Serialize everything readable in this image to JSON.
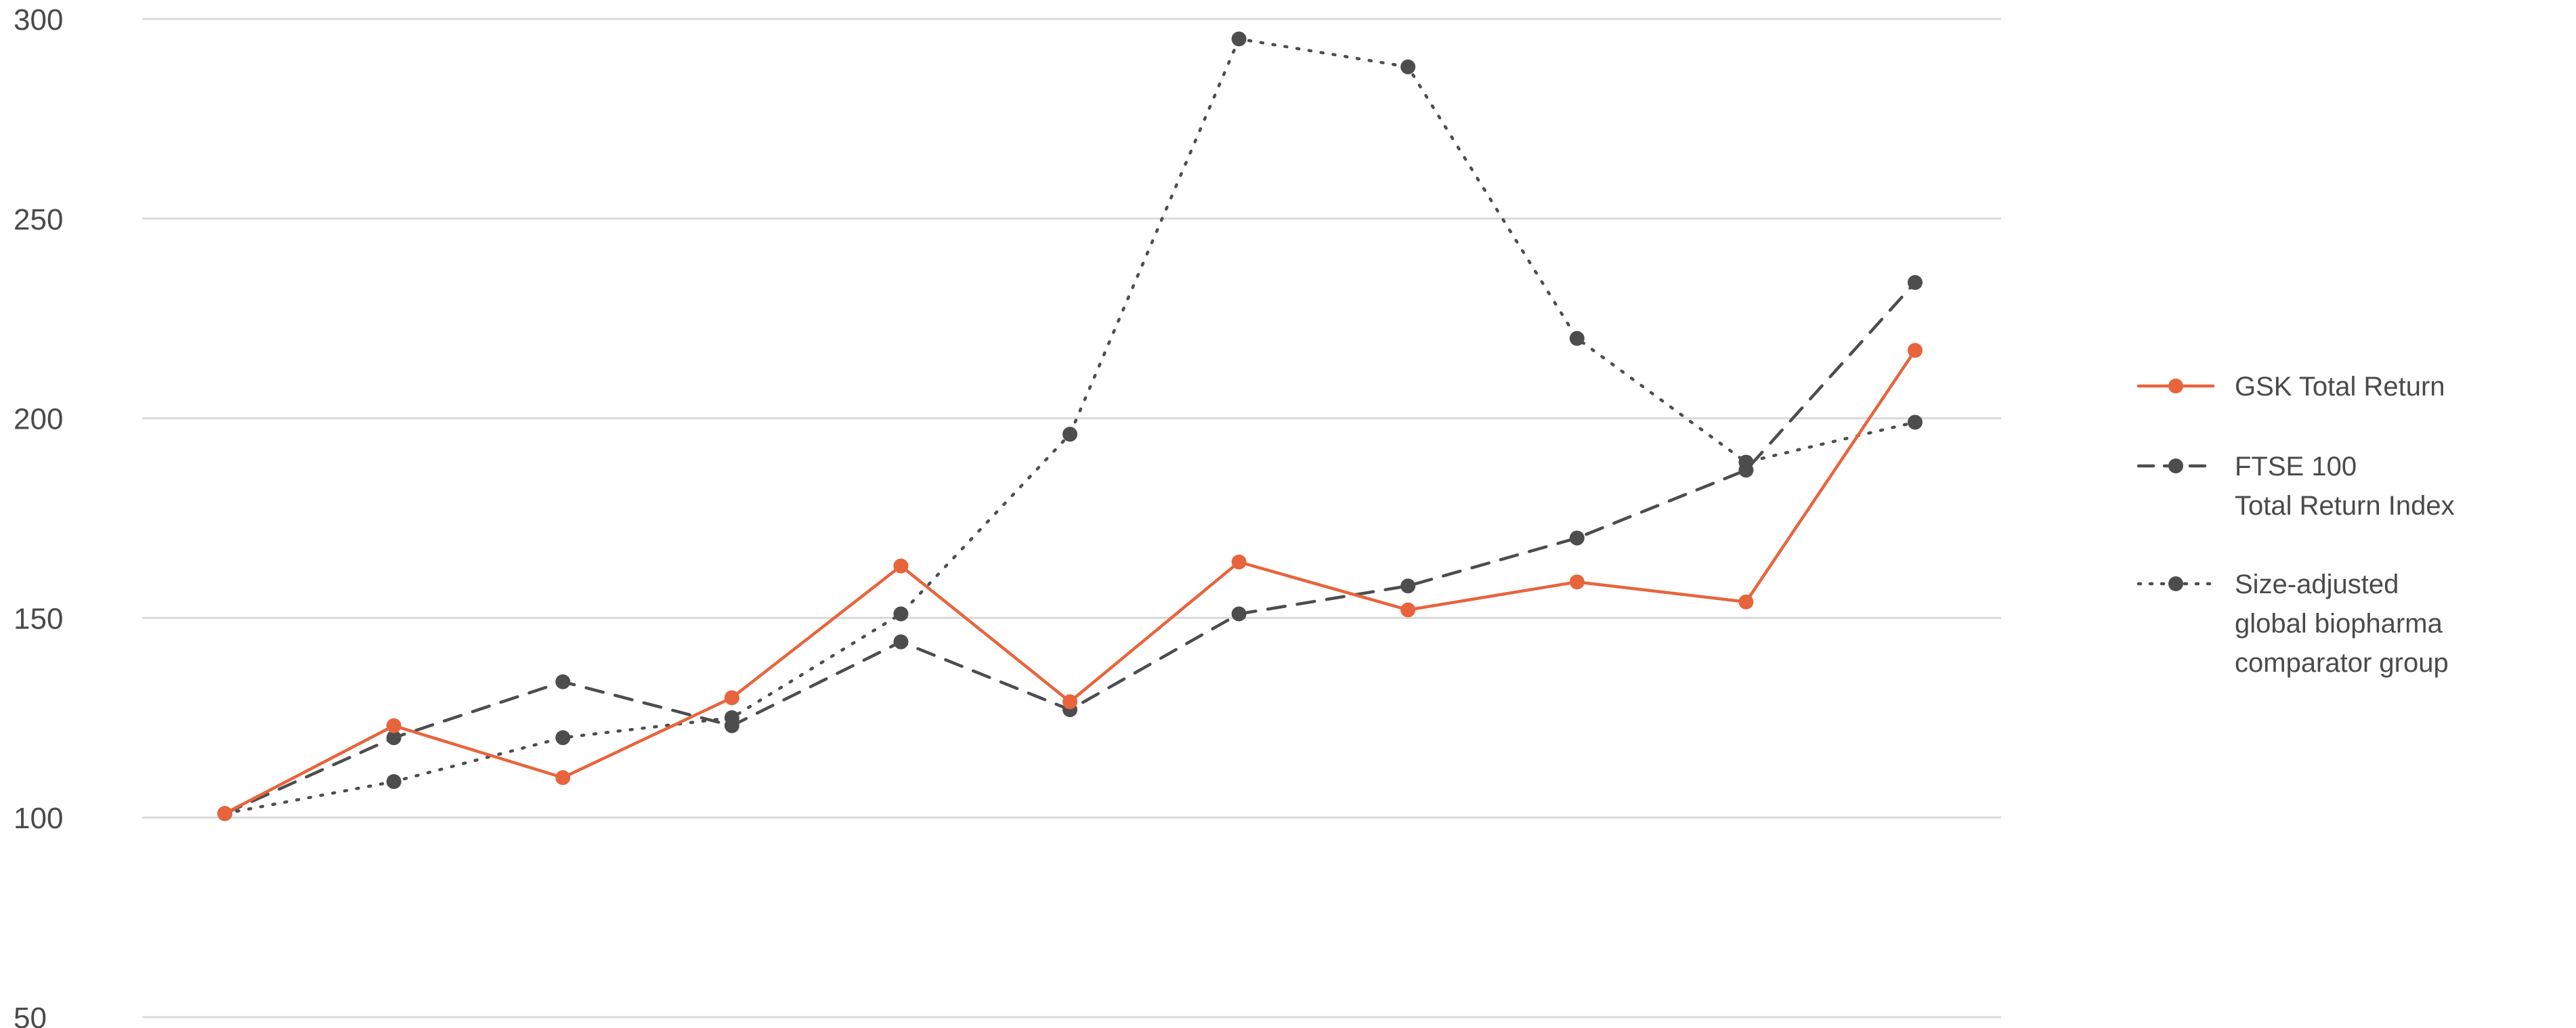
{
  "chart_data": {
    "type": "line",
    "title": "",
    "xlabel": "",
    "ylabel": "",
    "ylim": [
      50,
      300
    ],
    "yticks": [
      "50",
      "100",
      "150",
      "200",
      "250",
      "300"
    ],
    "grid": true,
    "legend_position": "right",
    "x": [
      1,
      2,
      3,
      4,
      5,
      6,
      7,
      8,
      9,
      10,
      11
    ],
    "series": [
      {
        "name": "GSK Total Return",
        "color": "#e8643c",
        "style": "solid",
        "values": [
          101,
          123,
          110,
          130,
          163,
          129,
          164,
          152,
          159,
          154,
          217
        ]
      },
      {
        "name": "FTSE 100 Total Return Index",
        "legend_lines": [
          "FTSE 100",
          "Total Return Index"
        ],
        "color": "#4d4d4d",
        "style": "dashed",
        "values": [
          101,
          120,
          134,
          123,
          144,
          127,
          151,
          158,
          170,
          187,
          234
        ]
      },
      {
        "name": "Size-adjusted global biopharma comparator group",
        "legend_lines": [
          "Size-adjusted",
          "global biopharma",
          "comparator group"
        ],
        "color": "#4d4d4d",
        "style": "dotted",
        "values": [
          101,
          109,
          120,
          125,
          151,
          196,
          295,
          288,
          220,
          189,
          199
        ]
      }
    ]
  }
}
